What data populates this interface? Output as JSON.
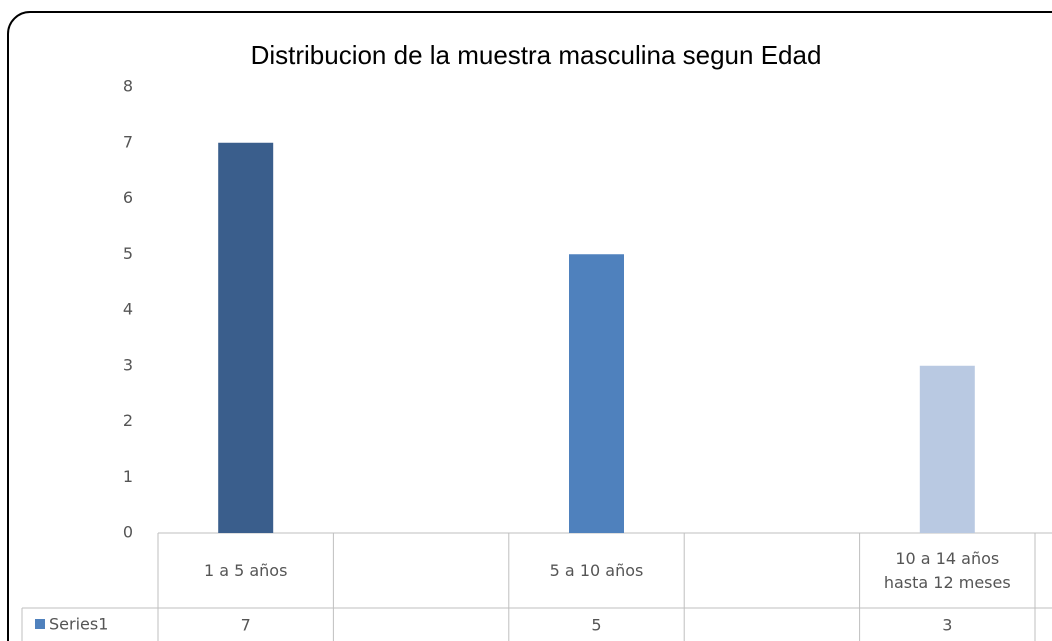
{
  "chart_data": {
    "type": "bar",
    "title": "Distribucion de la muestra masculina segun Edad",
    "categories": [
      "1 a 5 años",
      null,
      "5 a 10 años",
      null,
      "10 a 14 años hasta 12 meses"
    ],
    "series": [
      {
        "name": "Series1",
        "color": "#4f81bd",
        "colors": [
          "#3a5e8c",
          null,
          "#4f81bd",
          null,
          "#b9c9e2"
        ],
        "values": [
          7,
          null,
          5,
          null,
          3
        ]
      }
    ],
    "ylim": [
      0,
      8
    ],
    "yticks": [
      0,
      1,
      2,
      3,
      4,
      5,
      6,
      7,
      8
    ],
    "grid": false,
    "data_table": true
  }
}
